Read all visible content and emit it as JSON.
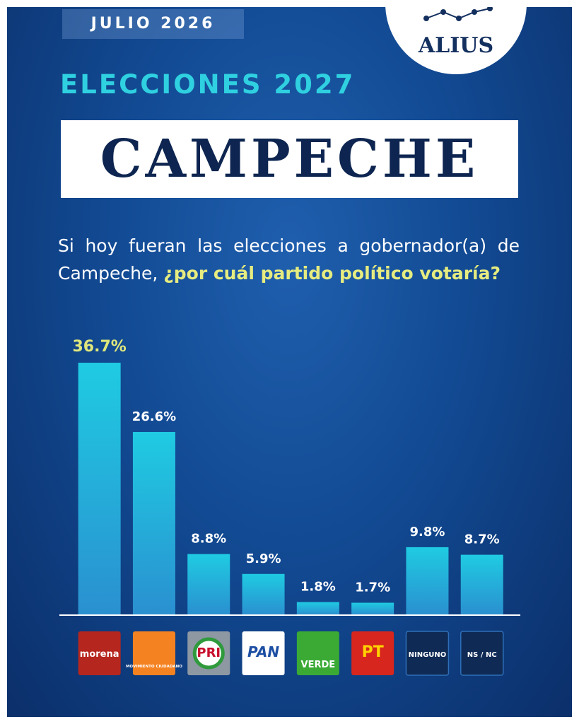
{
  "chart_data": {
    "type": "bar",
    "date": "JULIO 2026",
    "brand": "ALIUS",
    "supertitle": "ELECCIONES 2027",
    "title": "CAMPECHE",
    "question": "Si hoy fueran las elecciones a gobernador(a) de Campeche,",
    "question_highlight": "¿por cuál partido político votaría?",
    "categories": [
      "morena",
      "MOVIMIENTO CIUDADANO",
      "PRI",
      "PAN",
      "VERDE",
      "PT",
      "NINGUNO",
      "NS / NC"
    ],
    "values": [
      36.7,
      26.6,
      8.8,
      5.9,
      1.8,
      1.7,
      9.8,
      8.7
    ],
    "value_labels": [
      "36.7%",
      "26.6%",
      "8.8%",
      "5.9%",
      "1.8%",
      "1.7%",
      "9.8%",
      "8.7%"
    ],
    "color": "#22b8dc"
  }
}
